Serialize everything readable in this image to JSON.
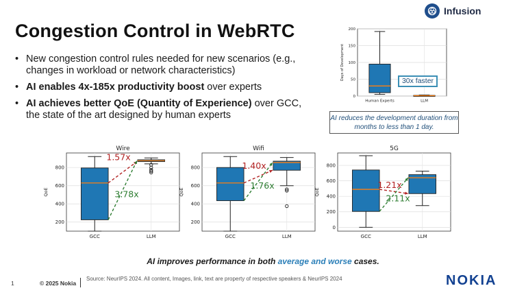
{
  "title": "Congestion Control in WebRTC",
  "brand": {
    "partner": "Infusion",
    "company": "NOKIA"
  },
  "bullets": [
    {
      "plain": "New congestion control rules needed for new scenarios (e.g., changes in workload or network characteristics)"
    },
    {
      "bold": "AI enables 4x-185x productivity boost",
      "rest": " over experts"
    },
    {
      "bold": "AI achieves better QoE (Quantity of Experience)",
      "rest": " over GCC, the state of the art designed by human experts"
    }
  ],
  "dev_note": "AI reduces the development duration from months to less than 1 day.",
  "dev_faster": "30x faster",
  "caption": {
    "pre": "AI improves performance in both ",
    "highlight": "average and worse",
    "post": " cases."
  },
  "footer": {
    "page": "1",
    "copyright": "© 2025 Nokia",
    "source": "Source: NeurIPS 2024.   All content, Images, link, text are property of respective speakers & NeurIPS 2024"
  },
  "colors": {
    "box": "#1f77b4",
    "median": "#ff7f0e",
    "red": "#b22222",
    "green": "#2e7d32",
    "accent": "#2b7fb8",
    "nokia": "#124191"
  },
  "chart_data": [
    {
      "type": "box",
      "title": "",
      "ylabel": "Days of Development",
      "ylim": [
        0,
        200
      ],
      "yticks": [
        0,
        50,
        100,
        150,
        200
      ],
      "categories": [
        "Human Experts",
        "LLM"
      ],
      "boxes": [
        {
          "min": 5,
          "q1": 10,
          "median": 30,
          "q3": 95,
          "max": 192
        },
        {
          "min": 0.5,
          "q1": 1,
          "median": 1,
          "q3": 2,
          "max": 3
        }
      ],
      "annotation": "30x faster"
    },
    {
      "type": "box",
      "title": "Wire",
      "ylabel": "QoE",
      "ylim": [
        100,
        960
      ],
      "yticks": [
        200,
        400,
        600,
        800
      ],
      "categories": [
        "GCC",
        "LLM"
      ],
      "boxes": [
        {
          "min": 100,
          "q1": 225,
          "median": 630,
          "q3": 795,
          "max": 920
        },
        {
          "min": 840,
          "q1": 865,
          "median": 875,
          "q3": 885,
          "max": 905,
          "outliers": [
            830,
            800,
            775,
            760,
            745
          ]
        }
      ],
      "annotations": [
        {
          "text": "1.57x",
          "kind": "worst"
        },
        {
          "text": "3.78x",
          "kind": "average"
        }
      ]
    },
    {
      "type": "box",
      "title": "Wifi",
      "ylabel": "QoE",
      "ylim": [
        100,
        960
      ],
      "yticks": [
        200,
        400,
        600,
        800
      ],
      "categories": [
        "GCC",
        "LLM"
      ],
      "boxes": [
        {
          "min": 100,
          "q1": 435,
          "median": 630,
          "q3": 800,
          "max": 920
        },
        {
          "min": 600,
          "q1": 770,
          "median": 855,
          "q3": 870,
          "max": 910,
          "outliers": [
            560,
            545,
            375
          ]
        }
      ],
      "annotations": [
        {
          "text": "1.40x",
          "kind": "worst"
        },
        {
          "text": "1.76x",
          "kind": "average"
        }
      ]
    },
    {
      "type": "box",
      "title": "5G",
      "ylabel": "QoE",
      "ylim": [
        -50,
        960
      ],
      "yticks": [
        0,
        200,
        400,
        600,
        800
      ],
      "categories": [
        "GCC",
        "LLM"
      ],
      "boxes": [
        {
          "min": 0,
          "q1": 205,
          "median": 490,
          "q3": 740,
          "max": 925
        },
        {
          "min": 280,
          "q1": 435,
          "median": 640,
          "q3": 680,
          "max": 725
        }
      ],
      "annotations": [
        {
          "text": "1.21x",
          "kind": "worst"
        },
        {
          "text": "2.11x",
          "kind": "average"
        }
      ]
    }
  ]
}
